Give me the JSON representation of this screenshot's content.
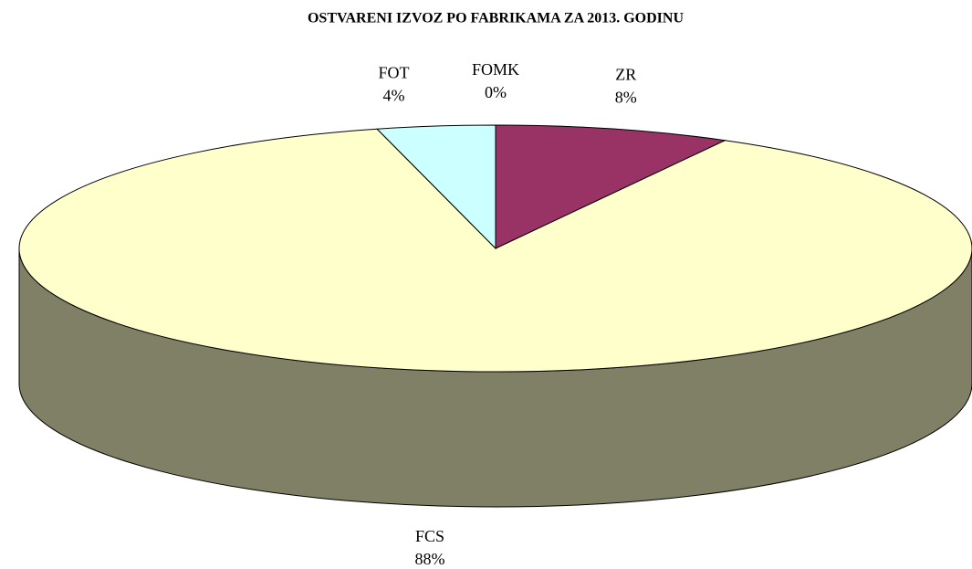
{
  "chart_data": {
    "type": "pie3d",
    "title": "OSTVARENI IZVOZ PO FABRIKAMA ZA 2013. GODINU",
    "categories": [
      "ZR",
      "FCS",
      "FOT",
      "FOMK"
    ],
    "values": [
      8,
      88,
      4,
      0
    ],
    "value_labels": [
      "8%",
      "88%",
      "4%",
      "0%"
    ],
    "colors": [
      "#993366",
      "#ffffcc",
      "#ccffff",
      "#9999ff"
    ]
  }
}
